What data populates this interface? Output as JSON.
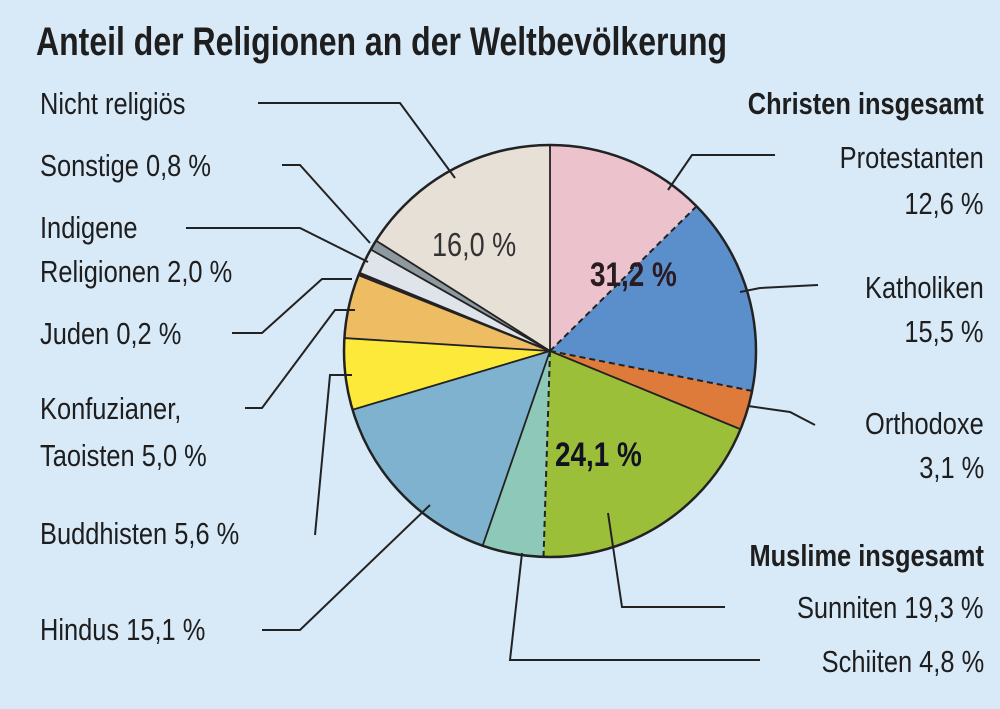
{
  "chart_data": {
    "type": "pie",
    "title": "Anteil der Religionen an der Weltbevölkerung",
    "start_angle": "12 o'clock",
    "direction": "clockwise",
    "slices": [
      {
        "label": "Protestanten",
        "value": 12.6,
        "value_label": "12,6 %",
        "color": "#ecc3cd",
        "group": "Christen"
      },
      {
        "label": "Katholiken",
        "value": 15.5,
        "value_label": "15,5 %",
        "color": "#5a8fcc",
        "group": "Christen"
      },
      {
        "label": "Orthodoxe",
        "value": 3.1,
        "value_label": "3,1 %",
        "color": "#de7a3a",
        "group": "Christen"
      },
      {
        "label": "Sunniten",
        "value": 19.3,
        "value_label": "19,3 %",
        "color": "#9cbf3a",
        "group": "Muslime"
      },
      {
        "label": "Schiiten",
        "value": 4.8,
        "value_label": "4,8 %",
        "color": "#8ec8b8",
        "group": "Muslime"
      },
      {
        "label": "Hindus",
        "value": 15.1,
        "value_label": "15,1 %",
        "color": "#7fb2cf"
      },
      {
        "label": "Buddhisten",
        "value": 5.6,
        "value_label": "5,6 %",
        "color": "#fde93a"
      },
      {
        "label": "Konfuzianer, Taoisten",
        "value": 5.0,
        "value_label": "5,0 %",
        "color": "#eebd63"
      },
      {
        "label": "Juden",
        "value": 0.2,
        "value_label": "0,2 %",
        "color": "#4a1a3a"
      },
      {
        "label": "Indigene Religionen",
        "value": 2.0,
        "value_label": "2,0 %",
        "color": "#dfe3ea"
      },
      {
        "label": "Sonstige",
        "value": 0.8,
        "value_label": "0,8 %",
        "color": "#8e9aa0"
      },
      {
        "label": "Nicht religiös",
        "value": 16.0,
        "value_label": "16,0 %",
        "color": "#e6e0d6"
      }
    ],
    "groups": [
      {
        "name": "Christen insgesamt",
        "total_label": "31,2 %"
      },
      {
        "name": "Muslime insgesamt",
        "total_label": "24,1 %"
      }
    ]
  },
  "labels": {
    "nicht_religioes": "Nicht religiös",
    "nicht_religioes_in": "16,0 %",
    "sonstige": "Sonstige 0,8 %",
    "indigene_1": "Indigene",
    "indigene_2": "Religionen 2,0 %",
    "juden": "Juden 0,2 %",
    "konf_1": "Konfuzianer,",
    "konf_2": "Taoisten 5,0 %",
    "buddhisten": "Buddhisten 5,6 %",
    "hindus": "Hindus 15,1 %",
    "protestanten_1": "Protestanten",
    "protestanten_2": "12,6 %",
    "katholiken_1": "Katholiken",
    "katholiken_2": "15,5 %",
    "orthodoxe_1": "Orthodoxe",
    "orthodoxe_2": "3,1 %",
    "sunniten": "Sunniten 19,3 %",
    "schiiten": "Schiiten 4,8 %"
  }
}
